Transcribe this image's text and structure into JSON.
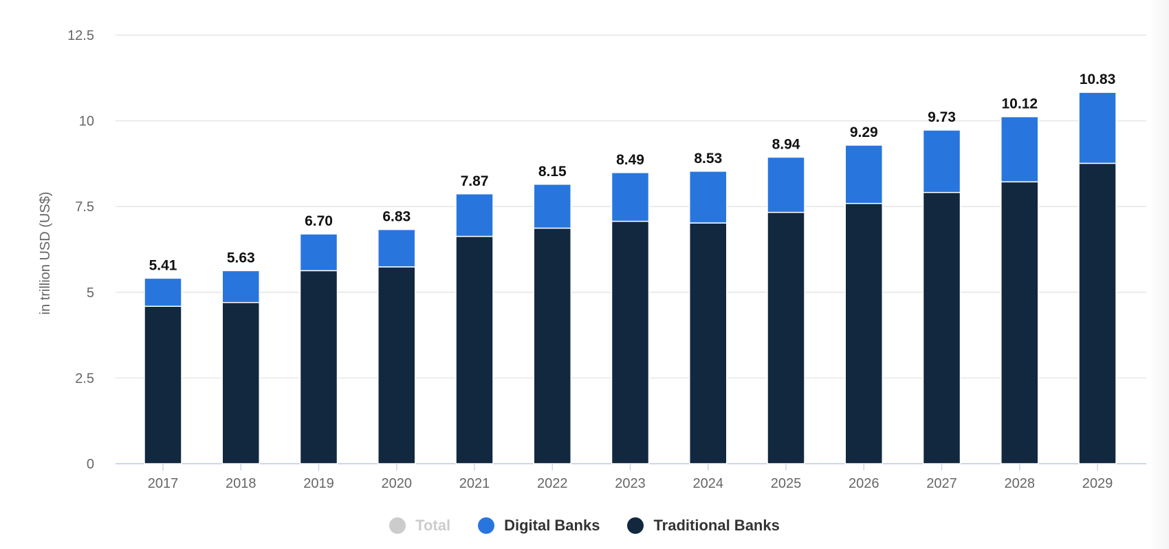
{
  "chart_data": {
    "type": "bar",
    "stacked": true,
    "title": "",
    "xlabel": "",
    "ylabel": "in trillion USD (US$)",
    "ylim": [
      0,
      12.5
    ],
    "yticks": [
      "0",
      "2.5",
      "5",
      "7.5",
      "10",
      "12.5"
    ],
    "grid": true,
    "legend_position": "bottom",
    "categories": [
      "2017",
      "2018",
      "2019",
      "2020",
      "2021",
      "2022",
      "2023",
      "2024",
      "2025",
      "2026",
      "2027",
      "2028",
      "2029"
    ],
    "totals_labels": [
      "5.41",
      "5.63",
      "6.70",
      "6.83",
      "7.87",
      "8.15",
      "8.49",
      "8.53",
      "8.94",
      "9.29",
      "9.73",
      "10.12",
      "10.83"
    ],
    "series": [
      {
        "name": "Traditional Banks",
        "color": "#12283f",
        "values": [
          4.59,
          4.7,
          5.63,
          5.74,
          6.63,
          6.87,
          7.07,
          7.02,
          7.33,
          7.59,
          7.91,
          8.22,
          8.76
        ]
      },
      {
        "name": "Digital Banks",
        "color": "#2876dd",
        "values": [
          0.82,
          0.93,
          1.07,
          1.09,
          1.24,
          1.28,
          1.42,
          1.51,
          1.61,
          1.7,
          1.82,
          1.9,
          2.07
        ]
      }
    ],
    "legend": [
      {
        "name": "Total",
        "color": "#cccccc",
        "hidden": true
      },
      {
        "name": "Digital Banks",
        "color": "#2876dd"
      },
      {
        "name": "Traditional Banks",
        "color": "#12283f"
      }
    ]
  }
}
